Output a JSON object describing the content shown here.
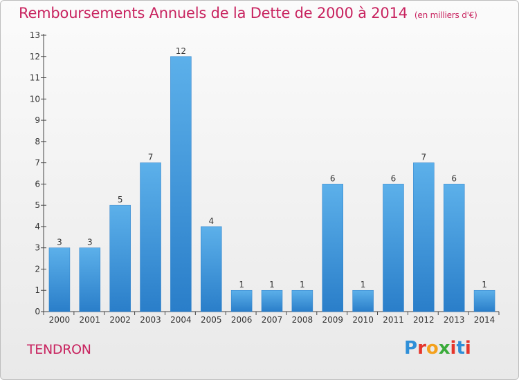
{
  "title": "Remboursements Annuels de la Dette de 2000 à 2014",
  "unit": "(en milliers d'€)",
  "commune": "TENDRON",
  "logo": {
    "text": "Proxiti",
    "colors": [
      "#2f8fd8",
      "#e5352b",
      "#f4a11d",
      "#3aab3a",
      "#e5352b",
      "#2f8fd8",
      "#e5352b"
    ]
  },
  "colors": {
    "title": "#c8235f",
    "bar_top": "#5cb0ea",
    "bar_bottom": "#2a7ec9"
  },
  "chart_data": {
    "type": "bar",
    "categories": [
      "2000",
      "2001",
      "2002",
      "2003",
      "2004",
      "2005",
      "2006",
      "2007",
      "2008",
      "2009",
      "2010",
      "2011",
      "2012",
      "2013",
      "2014"
    ],
    "values": [
      3,
      3,
      5,
      7,
      12,
      4,
      1,
      1,
      1,
      6,
      1,
      6,
      7,
      6,
      1
    ],
    "ylim": [
      0,
      13
    ],
    "yticks": [
      0,
      1,
      2,
      3,
      4,
      5,
      6,
      7,
      8,
      9,
      10,
      11,
      12,
      13
    ],
    "grid": false
  }
}
